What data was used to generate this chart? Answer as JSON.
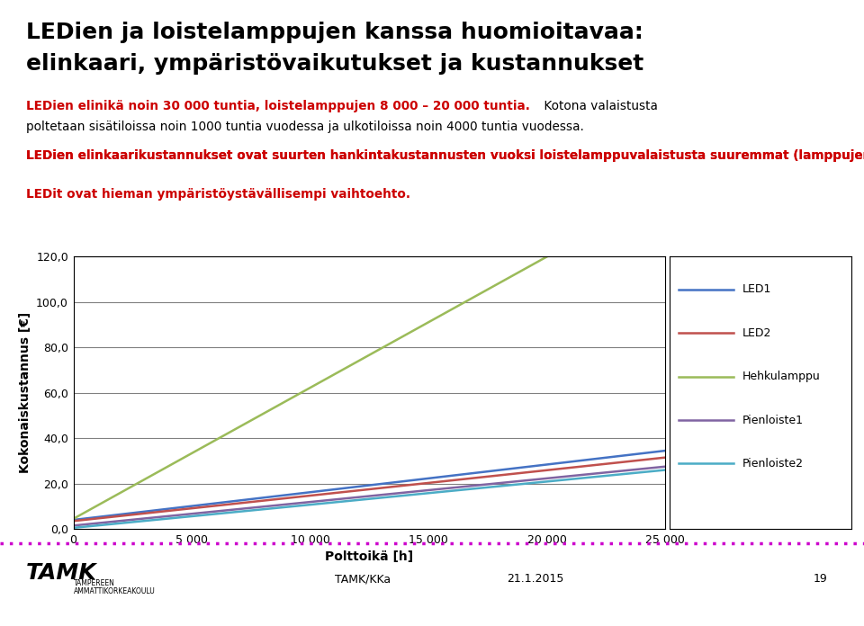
{
  "title_line1": "LEDien ja loistelamppujen kanssa huomioitavaa:",
  "title_line2": "elinkaari, ympäristövaikutukset ja kustannukset",
  "sub_red_bold": "LEDien elinikä noin 30 000 tuntia, loistelamppujen 8 000 – 20 000 tuntia.",
  "sub_normal_cont": " Kotona valaistusta",
  "sub_normal_line2": "poltetaan sisätiloissa noin 1000 tuntia vuodessa ja ulkotiloissa noin 4000 tuntia vuodessa.",
  "body_red_line1": "LEDien elinkaarikustannukset ovat suurten hankintakustannusten vuoksi loistelamppuvalaistusta suuremmat (lamppujen osalta jonkin verran, valaisinten kohdalla merkittävästi).",
  "body_red2": "LEDit ovat hieman ympäristöystävällisempi vaihtoehto.",
  "xlabel": "Polttoikä [h]",
  "ylabel": "Kokonaiskustannus [€]",
  "xlim": [
    0,
    25000
  ],
  "ylim": [
    0,
    120
  ],
  "yticks": [
    0,
    20,
    40,
    60,
    80,
    100,
    120
  ],
  "ytick_labels": [
    "0,0",
    "20,0",
    "40,0",
    "60,0",
    "80,0",
    "100,0",
    "120,0"
  ],
  "xticks": [
    0,
    5000,
    10000,
    15000,
    20000,
    25000
  ],
  "xtick_labels": [
    "0",
    "5 000",
    "10 000",
    "15 000",
    "20 000",
    "25 000"
  ],
  "series": {
    "LED1": {
      "color": "#4472C4",
      "x": [
        0,
        25000
      ],
      "y": [
        4.0,
        34.5
      ]
    },
    "LED2": {
      "color": "#C0504D",
      "x": [
        0,
        25000
      ],
      "y": [
        3.5,
        31.5
      ]
    },
    "Hehkulamppu": {
      "color": "#9BBB59",
      "x": [
        0,
        20000
      ],
      "y": [
        4.5,
        120.0
      ]
    },
    "Pienloiste1": {
      "color": "#8064A2",
      "x": [
        0,
        25000
      ],
      "y": [
        1.5,
        27.5
      ]
    },
    "Pienloiste2": {
      "color": "#4BACC6",
      "x": [
        0,
        25000
      ],
      "y": [
        0.5,
        26.0
      ]
    }
  },
  "legend_order": [
    "LED1",
    "LED2",
    "Hehkulamppu",
    "Pienloiste1",
    "Pienloiste2"
  ],
  "bg_color": "#FFFFFF",
  "grid_color": "#808080",
  "footer_dotted_color": "#CC00CC",
  "footer_text": "TAMK/KKa",
  "footer_date": "21.1.2015",
  "footer_page": "19"
}
